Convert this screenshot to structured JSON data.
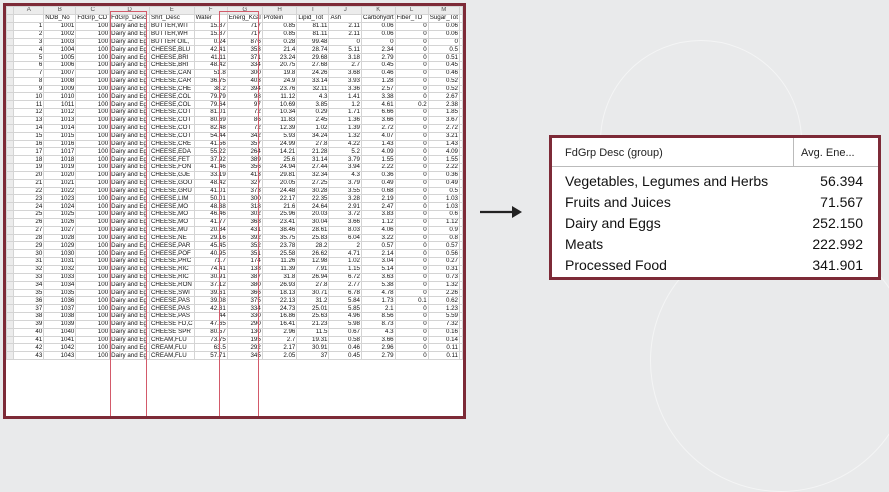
{
  "spreadsheet": {
    "col_letters": [
      "A",
      "B",
      "C",
      "D",
      "E",
      "F",
      "G",
      "H",
      "I",
      "J",
      "K",
      "L",
      "M"
    ],
    "headers": [
      "",
      "NDB_No",
      "FdGrp_CD",
      "FdGrp_Desc",
      "Shrt_Desc",
      "Water",
      "Energ_Kcal",
      "Protein",
      "Lipid_Tot",
      "Ash",
      "Carbohydrt",
      "Fiber_TD",
      "Sugar_Tot"
    ],
    "rows": [
      [
        "1",
        "1001",
        "100",
        "Dairy and Eg",
        "BUTTER,WIT",
        "15.87",
        "717",
        "0.85",
        "81.11",
        "2.11",
        "0.06",
        "0",
        "0.06"
      ],
      [
        "2",
        "1002",
        "100",
        "Dairy and Eg",
        "BUTTER,WH",
        "15.87",
        "717",
        "0.85",
        "81.11",
        "2.11",
        "0.06",
        "0",
        "0.06"
      ],
      [
        "3",
        "1003",
        "100",
        "Dairy and Eg",
        "BUTTER OIL,",
        "0.24",
        "876",
        "0.28",
        "99.48",
        "0",
        "0",
        "0",
        "0"
      ],
      [
        "4",
        "1004",
        "100",
        "Dairy and Eg",
        "CHEESE,BLU",
        "42.41",
        "353",
        "21.4",
        "28.74",
        "5.11",
        "2.34",
        "0",
        "0.5"
      ],
      [
        "5",
        "1005",
        "100",
        "Dairy and Eg",
        "CHEESE,BRI",
        "41.11",
        "371",
        "23.24",
        "29.68",
        "3.18",
        "2.79",
        "0",
        "0.51"
      ],
      [
        "6",
        "1006",
        "100",
        "Dairy and Eg",
        "CHEESE,BRI",
        "48.42",
        "334",
        "20.75",
        "27.68",
        "2.7",
        "0.45",
        "0",
        "0.45"
      ],
      [
        "7",
        "1007",
        "100",
        "Dairy and Eg",
        "CHEESE,CAN",
        "51.8",
        "300",
        "19.8",
        "24.26",
        "3.68",
        "0.46",
        "0",
        "0.46"
      ],
      [
        "8",
        "1008",
        "100",
        "Dairy and Eg",
        "CHEESE,CAR",
        "36.75",
        "403",
        "24.9",
        "33.14",
        "3.93",
        "1.28",
        "0",
        "0.52"
      ],
      [
        "9",
        "1009",
        "100",
        "Dairy and Eg",
        "CHEESE,CHE",
        "38.2",
        "394",
        "23.76",
        "32.11",
        "3.36",
        "2.57",
        "0",
        "0.52"
      ],
      [
        "10",
        "1010",
        "100",
        "Dairy and Eg",
        "CHEESE,COL",
        "79.79",
        "98",
        "11.12",
        "4.3",
        "1.41",
        "3.38",
        "0",
        "2.67"
      ],
      [
        "11",
        "1011",
        "100",
        "Dairy and Eg",
        "CHEESE,COL",
        "79.64",
        "97",
        "10.69",
        "3.85",
        "1.2",
        "4.61",
        "0.2",
        "2.38"
      ],
      [
        "12",
        "1012",
        "100",
        "Dairy and Eg",
        "CHEESE,COT",
        "81.01",
        "72",
        "10.34",
        "0.29",
        "1.71",
        "6.66",
        "0",
        "1.85"
      ],
      [
        "13",
        "1013",
        "100",
        "Dairy and Eg",
        "CHEESE,COT",
        "80.69",
        "86",
        "11.83",
        "2.45",
        "1.36",
        "3.66",
        "0",
        "3.67"
      ],
      [
        "14",
        "1014",
        "100",
        "Dairy and Eg",
        "CHEESE,COT",
        "82.48",
        "72",
        "12.39",
        "1.02",
        "1.39",
        "2.72",
        "0",
        "2.72"
      ],
      [
        "15",
        "1015",
        "100",
        "Dairy and Eg",
        "CHEESE,COT",
        "54.44",
        "342",
        "5.93",
        "34.24",
        "1.32",
        "4.07",
        "0",
        "3.21"
      ],
      [
        "16",
        "1016",
        "100",
        "Dairy and Eg",
        "CHEESE,CRE",
        "41.56",
        "357",
        "24.99",
        "27.8",
        "4.22",
        "1.43",
        "0",
        "1.43"
      ],
      [
        "17",
        "1017",
        "100",
        "Dairy and Eg",
        "CHEESE,EDA",
        "55.22",
        "264",
        "14.21",
        "21.28",
        "5.2",
        "4.09",
        "0",
        "4.09"
      ],
      [
        "18",
        "1018",
        "100",
        "Dairy and Eg",
        "CHEESE,FET",
        "37.92",
        "389",
        "25.6",
        "31.14",
        "3.79",
        "1.55",
        "0",
        "1.55"
      ],
      [
        "19",
        "1019",
        "100",
        "Dairy and Eg",
        "CHEESE,FON",
        "41.46",
        "356",
        "24.94",
        "27.44",
        "3.94",
        "2.22",
        "0",
        "2.22"
      ],
      [
        "20",
        "1020",
        "100",
        "Dairy and Eg",
        "CHEESE,GJE",
        "33.19",
        "413",
        "29.81",
        "32.34",
        "4.3",
        "0.36",
        "0",
        "0.36"
      ],
      [
        "21",
        "1021",
        "100",
        "Dairy and Eg",
        "CHEESE,GOU",
        "48.42",
        "327",
        "20.05",
        "27.25",
        "3.79",
        "0.49",
        "0",
        "0.49"
      ],
      [
        "22",
        "1022",
        "100",
        "Dairy and Eg",
        "CHEESE,GRU",
        "41.01",
        "373",
        "24.48",
        "30.28",
        "3.55",
        "0.68",
        "0",
        "0.5"
      ],
      [
        "23",
        "1023",
        "100",
        "Dairy and Eg",
        "CHEESE,LIM",
        "50.01",
        "300",
        "22.17",
        "22.35",
        "3.28",
        "2.19",
        "0",
        "1.03"
      ],
      [
        "24",
        "1024",
        "100",
        "Dairy and Eg",
        "CHEESE,MO",
        "48.38",
        "318",
        "21.6",
        "24.64",
        "2.91",
        "2.47",
        "0",
        "1.03"
      ],
      [
        "25",
        "1025",
        "100",
        "Dairy and Eg",
        "CHEESE,MO",
        "46.46",
        "302",
        "25.96",
        "20.03",
        "3.72",
        "3.83",
        "0",
        "0.6"
      ],
      [
        "26",
        "1026",
        "100",
        "Dairy and Eg",
        "CHEESE,MO",
        "41.77",
        "368",
        "23.41",
        "30.04",
        "3.66",
        "1.12",
        "0",
        "1.12"
      ],
      [
        "27",
        "1027",
        "100",
        "Dairy and Eg",
        "CHEESE,MU",
        "20.84",
        "431",
        "38.46",
        "28.61",
        "8.03",
        "4.06",
        "0",
        "0.9"
      ],
      [
        "28",
        "1028",
        "100",
        "Dairy and Eg",
        "CHEESE,NE",
        "29.16",
        "392",
        "35.75",
        "25.83",
        "6.04",
        "3.22",
        "0",
        "0.8"
      ],
      [
        "29",
        "1029",
        "100",
        "Dairy and Eg",
        "CHEESE,PAR",
        "45.45",
        "352",
        "23.78",
        "28.2",
        "2",
        "0.57",
        "0",
        "0.57"
      ],
      [
        "30",
        "1030",
        "100",
        "Dairy and Eg",
        "CHEESE,POF",
        "40.95",
        "351",
        "25.58",
        "26.62",
        "4.71",
        "2.14",
        "0",
        "0.56"
      ],
      [
        "31",
        "1031",
        "100",
        "Dairy and Eg",
        "CHEESE,PRC",
        "71.7",
        "174",
        "11.26",
        "12.98",
        "1.02",
        "3.04",
        "0",
        "0.27"
      ],
      [
        "32",
        "1032",
        "100",
        "Dairy and Eg",
        "CHEESE,RIC",
        "74.41",
        "138",
        "11.39",
        "7.91",
        "1.15",
        "5.14",
        "0",
        "0.31"
      ],
      [
        "33",
        "1033",
        "100",
        "Dairy and Eg",
        "CHEESE,RIC",
        "30.91",
        "387",
        "31.8",
        "26.94",
        "6.72",
        "3.63",
        "0",
        "0.73"
      ],
      [
        "34",
        "1034",
        "100",
        "Dairy and Eg",
        "CHEESE,RON",
        "37.12",
        "380",
        "26.93",
        "27.8",
        "2.77",
        "5.38",
        "0",
        "1.32"
      ],
      [
        "35",
        "1035",
        "100",
        "Dairy and Eg",
        "CHEESE,SWI",
        "39.61",
        "366",
        "18.13",
        "30.71",
        "6.78",
        "4.78",
        "0",
        "2.26"
      ],
      [
        "36",
        "1036",
        "100",
        "Dairy and Eg",
        "CHEESE,PAS",
        "39.08",
        "375",
        "22.13",
        "31.2",
        "5.84",
        "1.73",
        "0.1",
        "0.62"
      ],
      [
        "37",
        "1037",
        "100",
        "Dairy and Eg",
        "CHEESE,PAS",
        "42.31",
        "334",
        "24.73",
        "25.01",
        "5.85",
        "2.1",
        "0",
        "1.23"
      ],
      [
        "38",
        "1038",
        "100",
        "Dairy and Eg",
        "CHEESE,PAS",
        "44",
        "330",
        "16.86",
        "25.63",
        "4.96",
        "8.56",
        "0",
        "5.59"
      ],
      [
        "39",
        "1039",
        "100",
        "Dairy and Eg",
        "CHEESE FD,C",
        "47.65",
        "290",
        "16.41",
        "21.23",
        "5.98",
        "8.73",
        "0",
        "7.32"
      ],
      [
        "40",
        "1040",
        "100",
        "Dairy and Eg",
        "CHEESE SPR",
        "80.57",
        "130",
        "2.96",
        "11.5",
        "0.67",
        "4.3",
        "0",
        "0.16"
      ],
      [
        "41",
        "1041",
        "100",
        "Dairy and Eg",
        "CREAM,FLU",
        "73.75",
        "195",
        "2.7",
        "19.31",
        "0.58",
        "3.66",
        "0",
        "0.14"
      ],
      [
        "42",
        "1042",
        "100",
        "Dairy and Eg",
        "CREAM,FLU",
        "63.5",
        "292",
        "2.17",
        "30.91",
        "0.46",
        "2.96",
        "0",
        "0.11"
      ],
      [
        "43",
        "1043",
        "100",
        "Dairy and Eg",
        "CREAM,FLU",
        "57.71",
        "345",
        "2.05",
        "37",
        "0.45",
        "2.79",
        "0",
        "0.11"
      ]
    ]
  },
  "pivot": {
    "col1_header": "FdGrp Desc (group)",
    "col2_header": "Avg. Ene...",
    "rows": [
      {
        "name": "Vegetables, Legumes and Herbs",
        "value": "56.394"
      },
      {
        "name": "Fruits and Juices",
        "value": "71.567"
      },
      {
        "name": "Dairy and Eggs",
        "value": "252.150"
      },
      {
        "name": "Meats",
        "value": "222.992"
      },
      {
        "name": "Processed Food",
        "value": "341.901"
      }
    ]
  },
  "colors": {
    "frame": "#7d2a37",
    "highlight": "#d35a6a"
  },
  "icons": {
    "arrow": "right-arrow-icon"
  }
}
